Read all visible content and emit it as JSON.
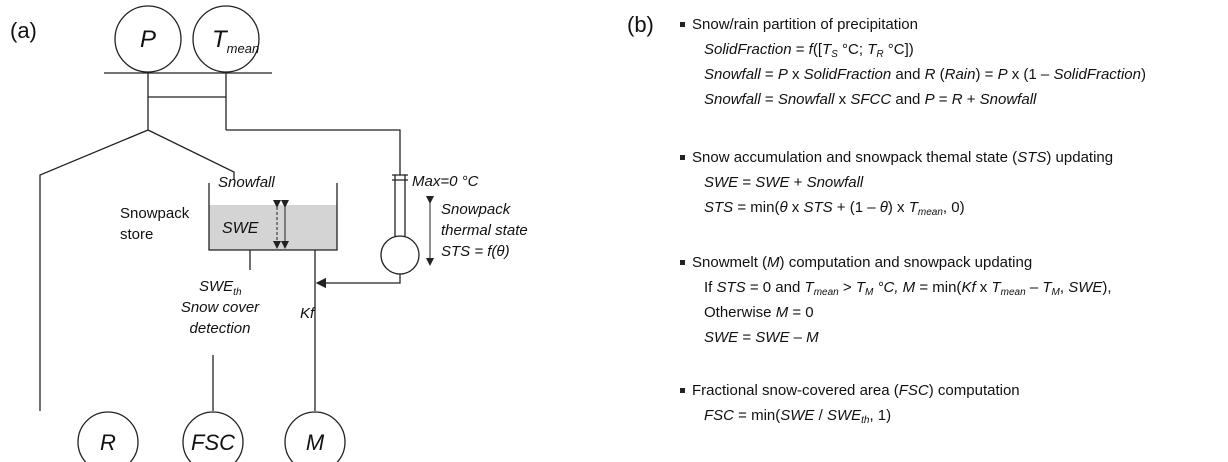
{
  "panel_a": {
    "label": "(a)",
    "nodes": {
      "p": "P",
      "t": [
        "T",
        "mean"
      ],
      "r": "R",
      "fsc": "FSC",
      "m": "M"
    },
    "snowfall": "Snowfall",
    "swe": "SWE",
    "store": [
      "Snowpack",
      "store"
    ],
    "swe_th": [
      "SWE",
      "th"
    ],
    "detection": [
      "Snow cover",
      "detection"
    ],
    "kf": "Kf",
    "max": "Max=0 °C",
    "thermal": [
      "Snowpack",
      "thermal state",
      "STS = f(θ)"
    ]
  },
  "panel_b": {
    "label": "(b)",
    "sections": [
      {
        "heading": [
          "Snow/rain partition of precipitation"
        ],
        "lines": [
          [
            "SolidFraction",
            " = ",
            "f",
            "([",
            "T",
            "S",
            " °C; ",
            "T",
            "R",
            " °C])"
          ],
          [
            "Snowfall",
            " = ",
            "P",
            " x ",
            "SolidFraction",
            " and ",
            "R",
            " (",
            "Rain",
            ") = ",
            "P",
            " x (1 – ",
            "SolidFraction",
            ")"
          ],
          [
            "Snowfall",
            " = ",
            "Snowfall",
            " x ",
            "SFCC",
            " and ",
            "P",
            " = ",
            "R",
            " + ",
            "Snowfall"
          ]
        ]
      },
      {
        "heading": [
          "Snow accumulation and snowpack themal state (",
          "STS",
          ") updating"
        ],
        "lines": [
          [
            "SWE",
            " = ",
            "SWE",
            " + ",
            "Snowfall"
          ],
          [
            "STS",
            " = min(",
            "θ",
            " x ",
            "STS",
            " + (1 – ",
            "θ",
            ") x ",
            "T",
            "mean",
            ", 0)"
          ]
        ]
      },
      {
        "heading": [
          "Snowmelt (",
          "M",
          ") computation and snowpack updating"
        ],
        "lines": [
          [
            "If ",
            "STS",
            " = 0 and ",
            "T",
            "mean",
            " > ",
            "T",
            "M",
            " °C, M",
            " = min(",
            "Kf",
            " x ",
            "T",
            "mean",
            " – ",
            "T",
            "M",
            ", ",
            "SWE",
            "),"
          ],
          [
            "Otherwise ",
            "M",
            " = 0"
          ],
          [
            "SWE",
            " = ",
            "SWE",
            " – ",
            "M"
          ]
        ]
      },
      {
        "heading": [
          "Fractional snow-covered area (",
          "FSC",
          ") computation"
        ],
        "lines": [
          [
            "FSC",
            " = min(",
            "SWE",
            " / ",
            "SWE",
            "th",
            ", 1)"
          ]
        ]
      }
    ]
  }
}
